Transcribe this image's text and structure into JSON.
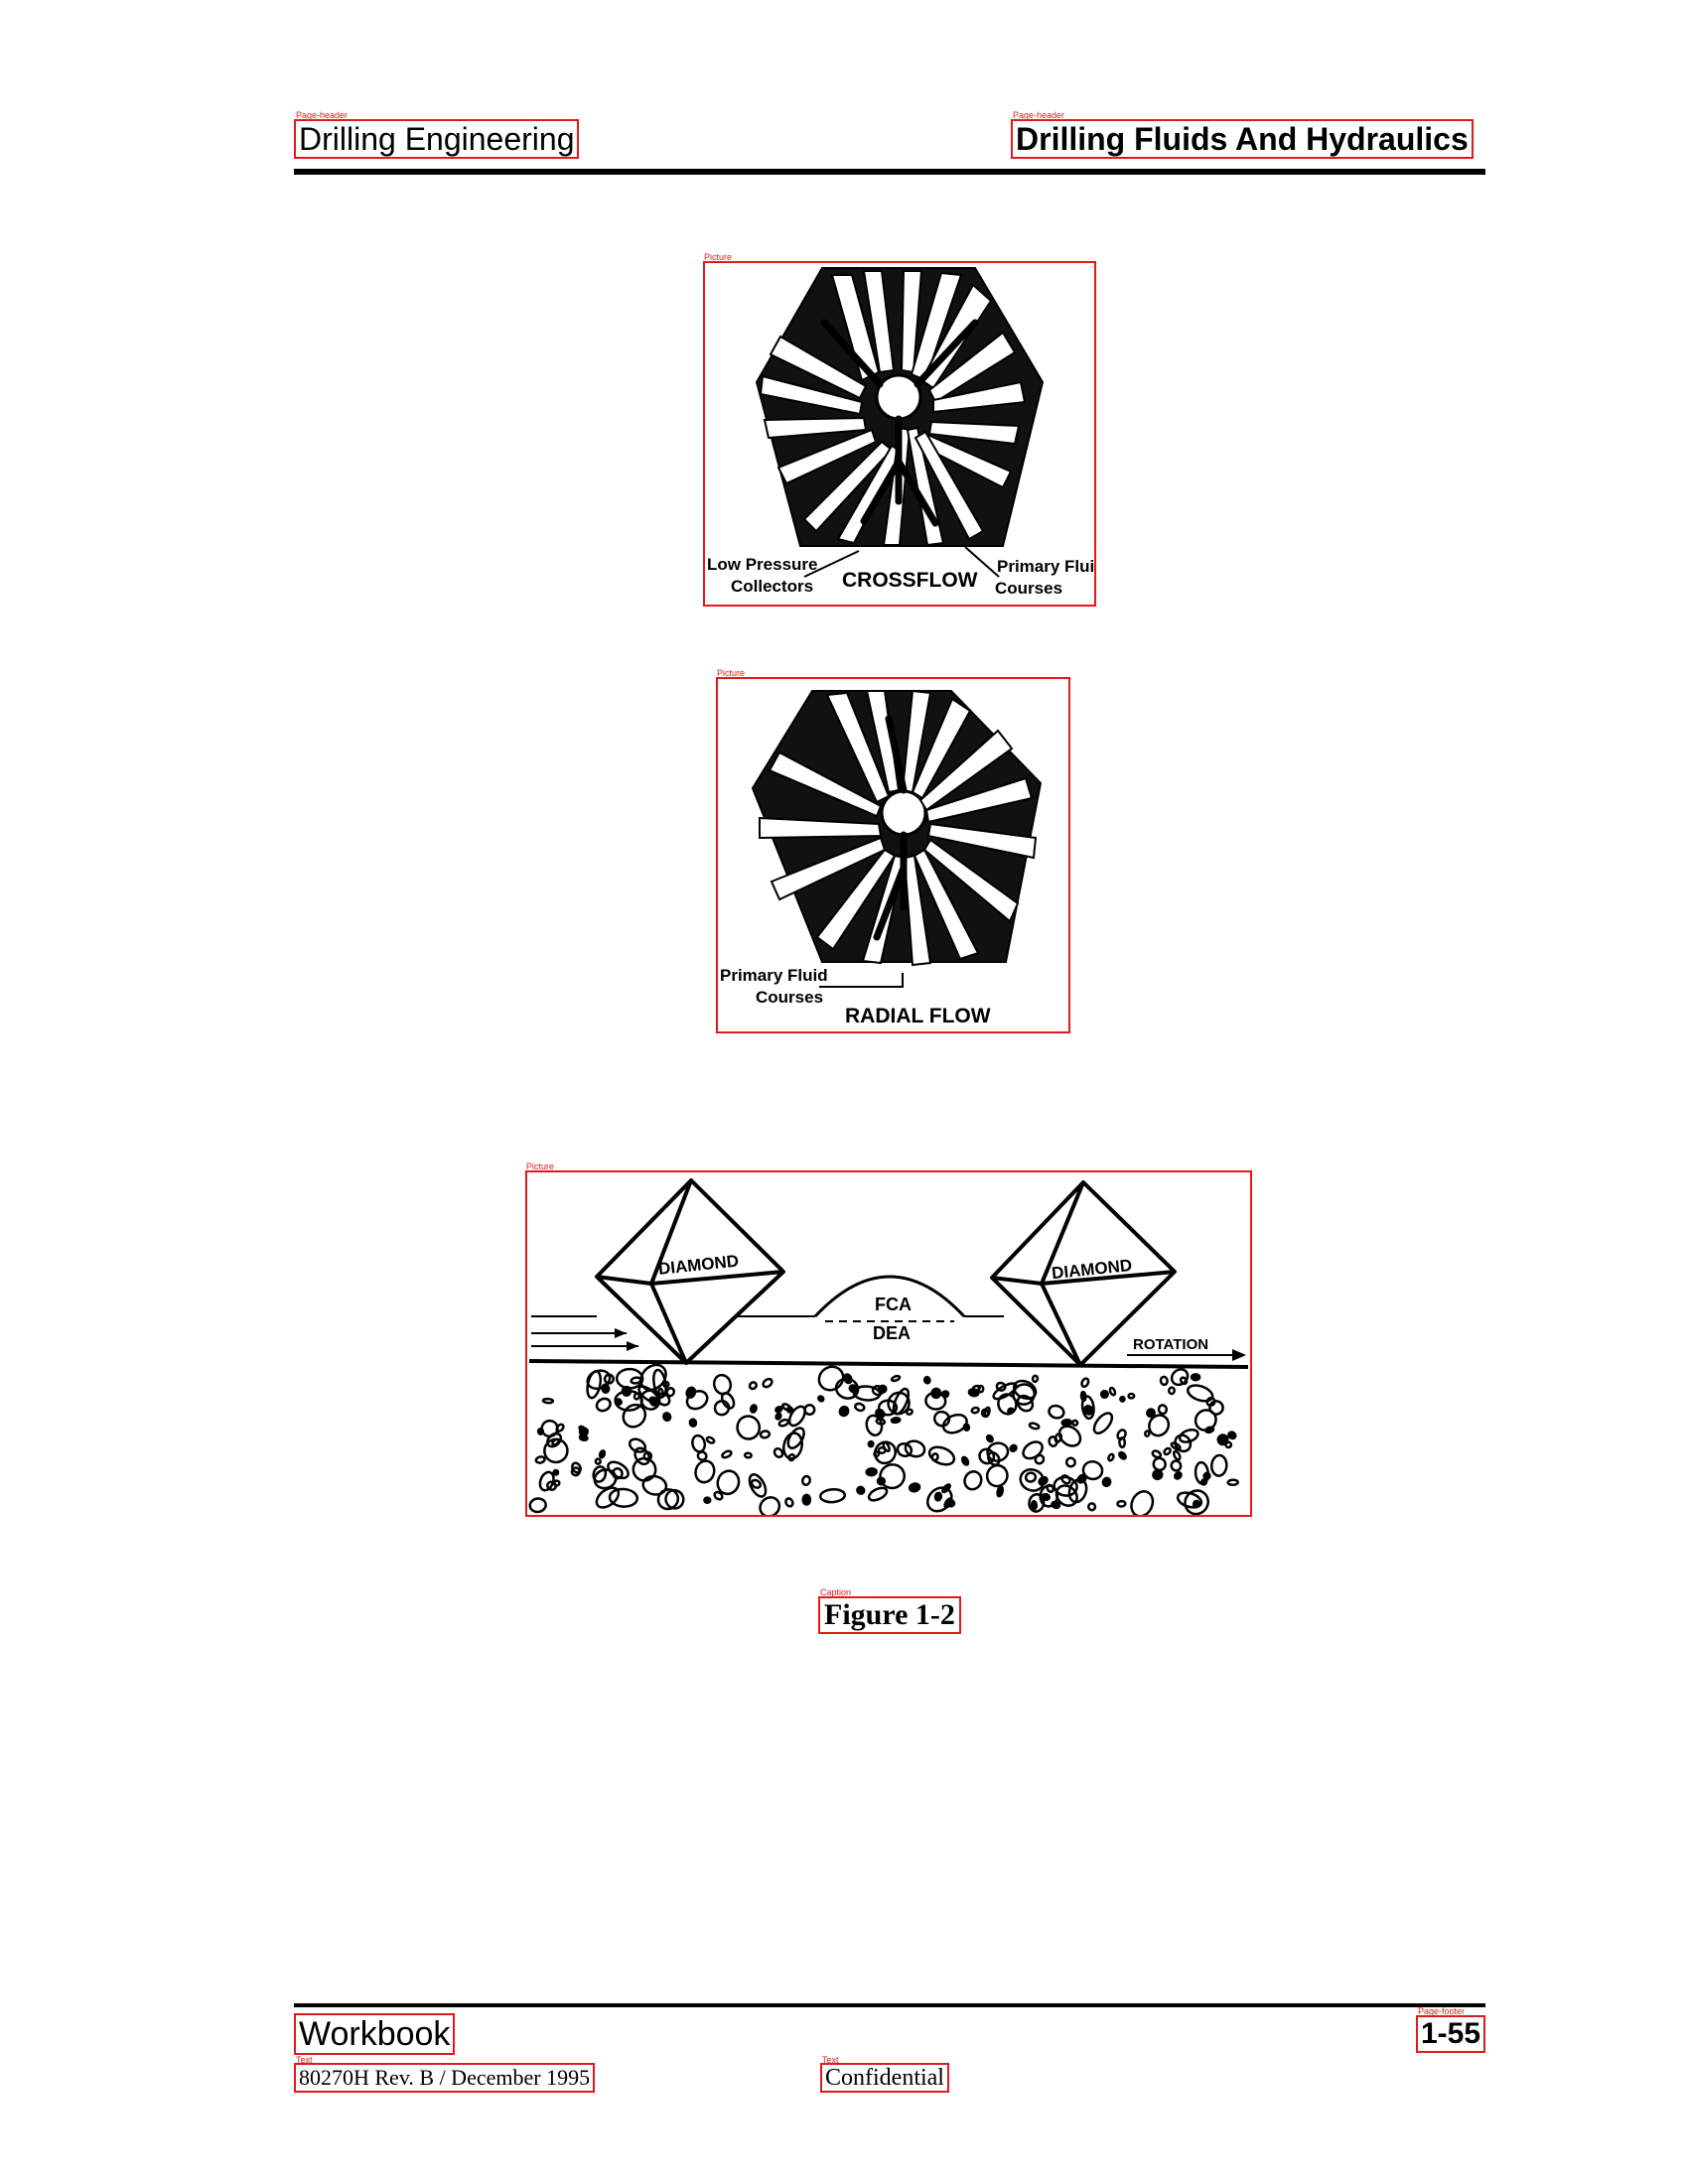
{
  "header": {
    "left_title": "Drilling Engineering",
    "right_title": "Drilling Fluids And Hydraulics"
  },
  "region_tags": {
    "page_header": "Page-header",
    "picture": "Picture",
    "caption": "Caption",
    "page_footer": "Page-footer",
    "text": "Text"
  },
  "figures": {
    "crossflow": {
      "title": "CROSSFLOW",
      "label_left_line1": "Low Pressure",
      "label_left_line2": "Collectors",
      "label_right_line1": "Primary Fluid",
      "label_right_line2": "Courses"
    },
    "radial": {
      "title": "RADIAL FLOW",
      "label_line1": "Primary Fluid",
      "label_line2": "Courses"
    },
    "diamond": {
      "left_diamond": "DIAMOND",
      "right_diamond": "DIAMOND",
      "fca": "FCA",
      "dea": "DEA",
      "rotation": "ROTATION"
    },
    "caption": "Figure 1-2"
  },
  "footer": {
    "left": "Workbook",
    "page_number": "1-55",
    "document_ref": "80270H Rev. B / December 1995",
    "confidentiality": "Confidential"
  }
}
